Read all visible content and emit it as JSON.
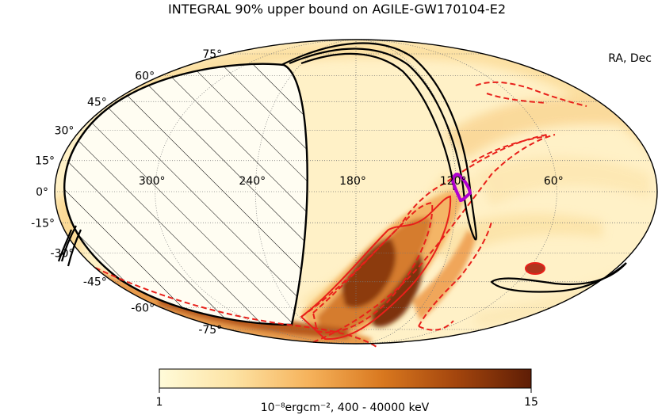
{
  "chart_data": {
    "type": "heatmap",
    "title": "INTEGRAL 90% upper bound on AGILE-GW170104-E2",
    "projection": "mollweide",
    "coordinate_label": "RA, Dec",
    "ra_ticks": [
      "300°",
      "240°",
      "180°",
      "120°",
      "60°"
    ],
    "ra_tick_values": [
      300,
      240,
      180,
      120,
      60
    ],
    "dec_ticks": [
      "75°",
      "60°",
      "45°",
      "30°",
      "15°",
      "0°",
      "-15°",
      "-30°",
      "-45°",
      "-60°",
      "-75°"
    ],
    "dec_tick_values": [
      75,
      60,
      45,
      30,
      15,
      0,
      -15,
      -30,
      -45,
      -60,
      -75
    ],
    "colorbar": {
      "min": 1,
      "max": 15,
      "min_label": "1",
      "max_label": "15",
      "label": "10⁻⁸ergcm⁻², 400 - 40000 keV",
      "colors": [
        "#fffbd9",
        "#fde3a4",
        "#f6b35c",
        "#d9781f",
        "#a3450d",
        "#5e1d05"
      ]
    },
    "grid": true,
    "colors": {
      "contour_dashed": "#e8201a",
      "contour_solid": "#e8201a",
      "localization": "#000000",
      "source_region": "#b000d0",
      "earth_occulted_hatch": "#000000"
    }
  }
}
